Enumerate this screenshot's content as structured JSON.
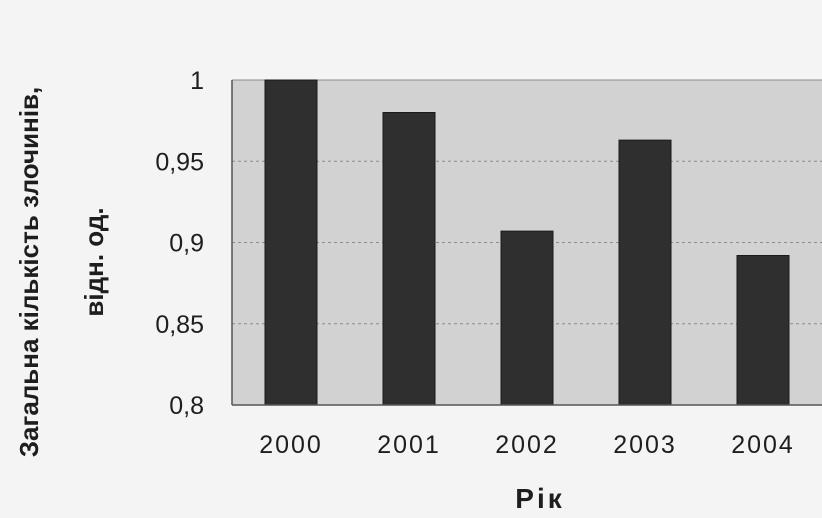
{
  "chart_data": {
    "type": "bar",
    "categories": [
      "2000",
      "2001",
      "2002",
      "2003",
      "2004"
    ],
    "values": [
      1.0,
      0.98,
      0.907,
      0.963,
      0.892
    ],
    "title": "",
    "xlabel": "Рік",
    "ylabel_line1": "Загальна кількість злочинів,",
    "ylabel_line2": "відн. од.",
    "ylim": [
      0.8,
      1.0
    ],
    "yticks": [
      0.8,
      0.85,
      0.9,
      0.95,
      1.0
    ],
    "ytick_labels": [
      "0,8",
      "0,85",
      "0,9",
      "0,95",
      "1"
    ],
    "grid": true,
    "legend": "none",
    "colors": {
      "bar": "#2f2f2f",
      "plot_background": "#d2d2d2",
      "grid": "#8c8c8c",
      "text": "#1e1e1e"
    }
  }
}
